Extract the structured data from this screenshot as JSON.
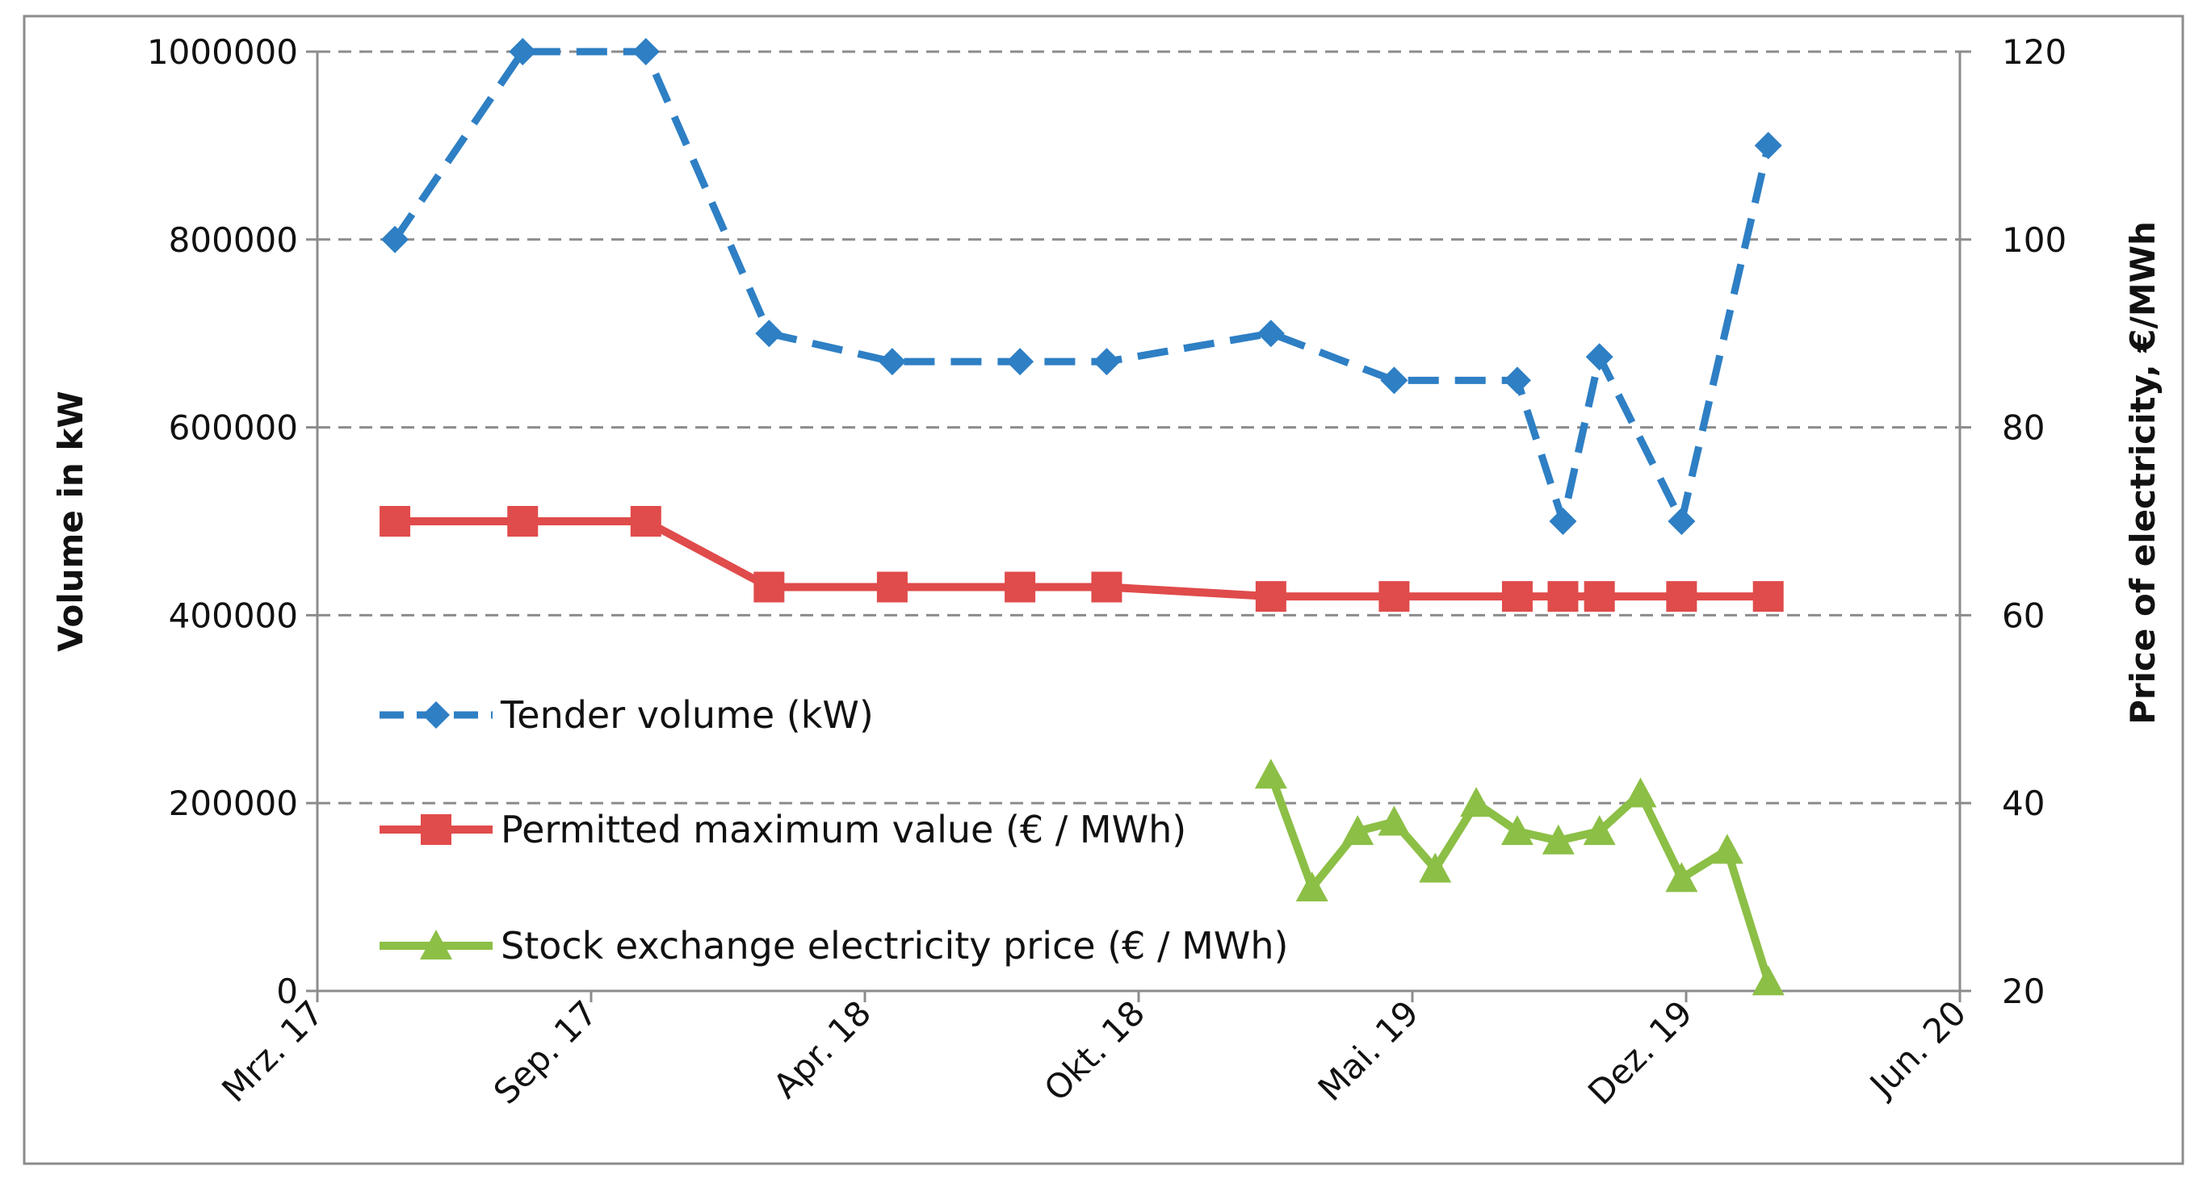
{
  "chart_data": {
    "type": "line",
    "title": "",
    "x_tick_labels": [
      "Mrz. 17",
      "Sep. 17",
      "Apr. 18",
      "Okt. 18",
      "Mai. 19",
      "Dez. 19",
      "Jun. 20"
    ],
    "x_tick_months": [
      0,
      6,
      12,
      18,
      24,
      30,
      36
    ],
    "x_unit": "months since Mar 2017",
    "xlim": [
      0,
      36
    ],
    "ylabel_left": "Volume in kW",
    "ylabel_right": "Price of electricity, €/MWh",
    "ylim_left": [
      0,
      1000000
    ],
    "ylim_right": [
      20,
      120
    ],
    "y_ticks_left": [
      "0",
      "200000",
      "400000",
      "600000",
      "800000",
      "1000000"
    ],
    "y_ticks_left_values": [
      0,
      200000,
      400000,
      600000,
      800000,
      1000000
    ],
    "y_ticks_right": [
      "20",
      "40",
      "60",
      "80",
      "100",
      "120"
    ],
    "y_ticks_right_values": [
      20,
      40,
      60,
      80,
      100,
      120
    ],
    "grid": true,
    "legend_position": "center-left",
    "series": [
      {
        "name": "Tender volume (kW)",
        "axis": "left",
        "color": "#2e7fc4",
        "marker": "diamond",
        "line_style": "dashed",
        "x": [
          1.7,
          4.5,
          7.2,
          9.9,
          12.6,
          15.4,
          17.3,
          20.9,
          23.6,
          26.3,
          27.3,
          28.1,
          29.9,
          31.8
        ],
        "y": [
          800000,
          1000000,
          1000000,
          700000,
          670000,
          670000,
          670000,
          700000,
          650000,
          650000,
          500000,
          675000,
          500000,
          900000
        ]
      },
      {
        "name": "Permitted maximum value (€ / MWh)",
        "axis": "right",
        "color": "#e04b4b",
        "marker": "square",
        "line_style": "solid",
        "x": [
          1.7,
          4.5,
          7.2,
          9.9,
          12.6,
          15.4,
          17.3,
          20.9,
          23.6,
          26.3,
          27.3,
          28.1,
          29.9,
          31.8
        ],
        "y": [
          70,
          70,
          70,
          63,
          63,
          63,
          63,
          62,
          62,
          62,
          62,
          62,
          62,
          62
        ]
      },
      {
        "name": "Stock exchange electricity price (€ / MWh)",
        "axis": "right",
        "color": "#8cbf46",
        "marker": "triangle",
        "line_style": "solid",
        "x": [
          20.9,
          21.8,
          22.8,
          23.6,
          24.5,
          25.4,
          26.3,
          27.2,
          28.1,
          29.0,
          29.9,
          30.9,
          31.8
        ],
        "y": [
          43,
          31,
          37,
          38,
          33,
          40,
          37,
          36,
          37,
          41,
          32,
          35,
          21
        ]
      }
    ]
  }
}
